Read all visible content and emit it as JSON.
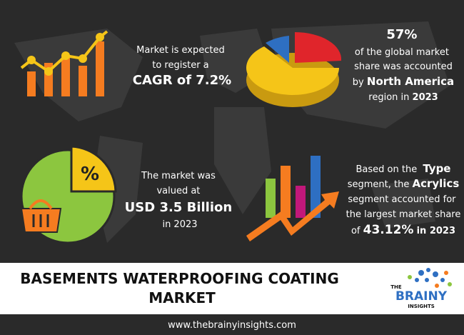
{
  "cagr": {
    "lines": [
      "Market is expected",
      "to register a"
    ],
    "highlight": "CAGR of 7.2%"
  },
  "region": {
    "share": "57%",
    "lines": [
      "of the global market",
      "share was accounted"
    ],
    "by": "by",
    "region": "North America",
    "tail": "region in",
    "year": "2023"
  },
  "size": {
    "lines": [
      "The market was",
      "valued at"
    ],
    "highlight": "USD 3.5 Billion",
    "year": "in 2023"
  },
  "segment": {
    "intro": "Based on the",
    "type": "Type",
    "mid": "segment, the",
    "name": "Acrylics",
    "lines": [
      "segment accounted for",
      "the largest market share"
    ],
    "of": "of",
    "share": "43.12%",
    "year": "in 2023"
  },
  "icon_symbol": "%",
  "title": {
    "lines": [
      "BASEMENTS WATERPROOFING COATING",
      "MARKET"
    ]
  },
  "logo": {
    "the": "THE",
    "brainy": "BRAINY",
    "insights": "INSIGHTS"
  },
  "footer": "www.thebrainyinsights.com"
}
